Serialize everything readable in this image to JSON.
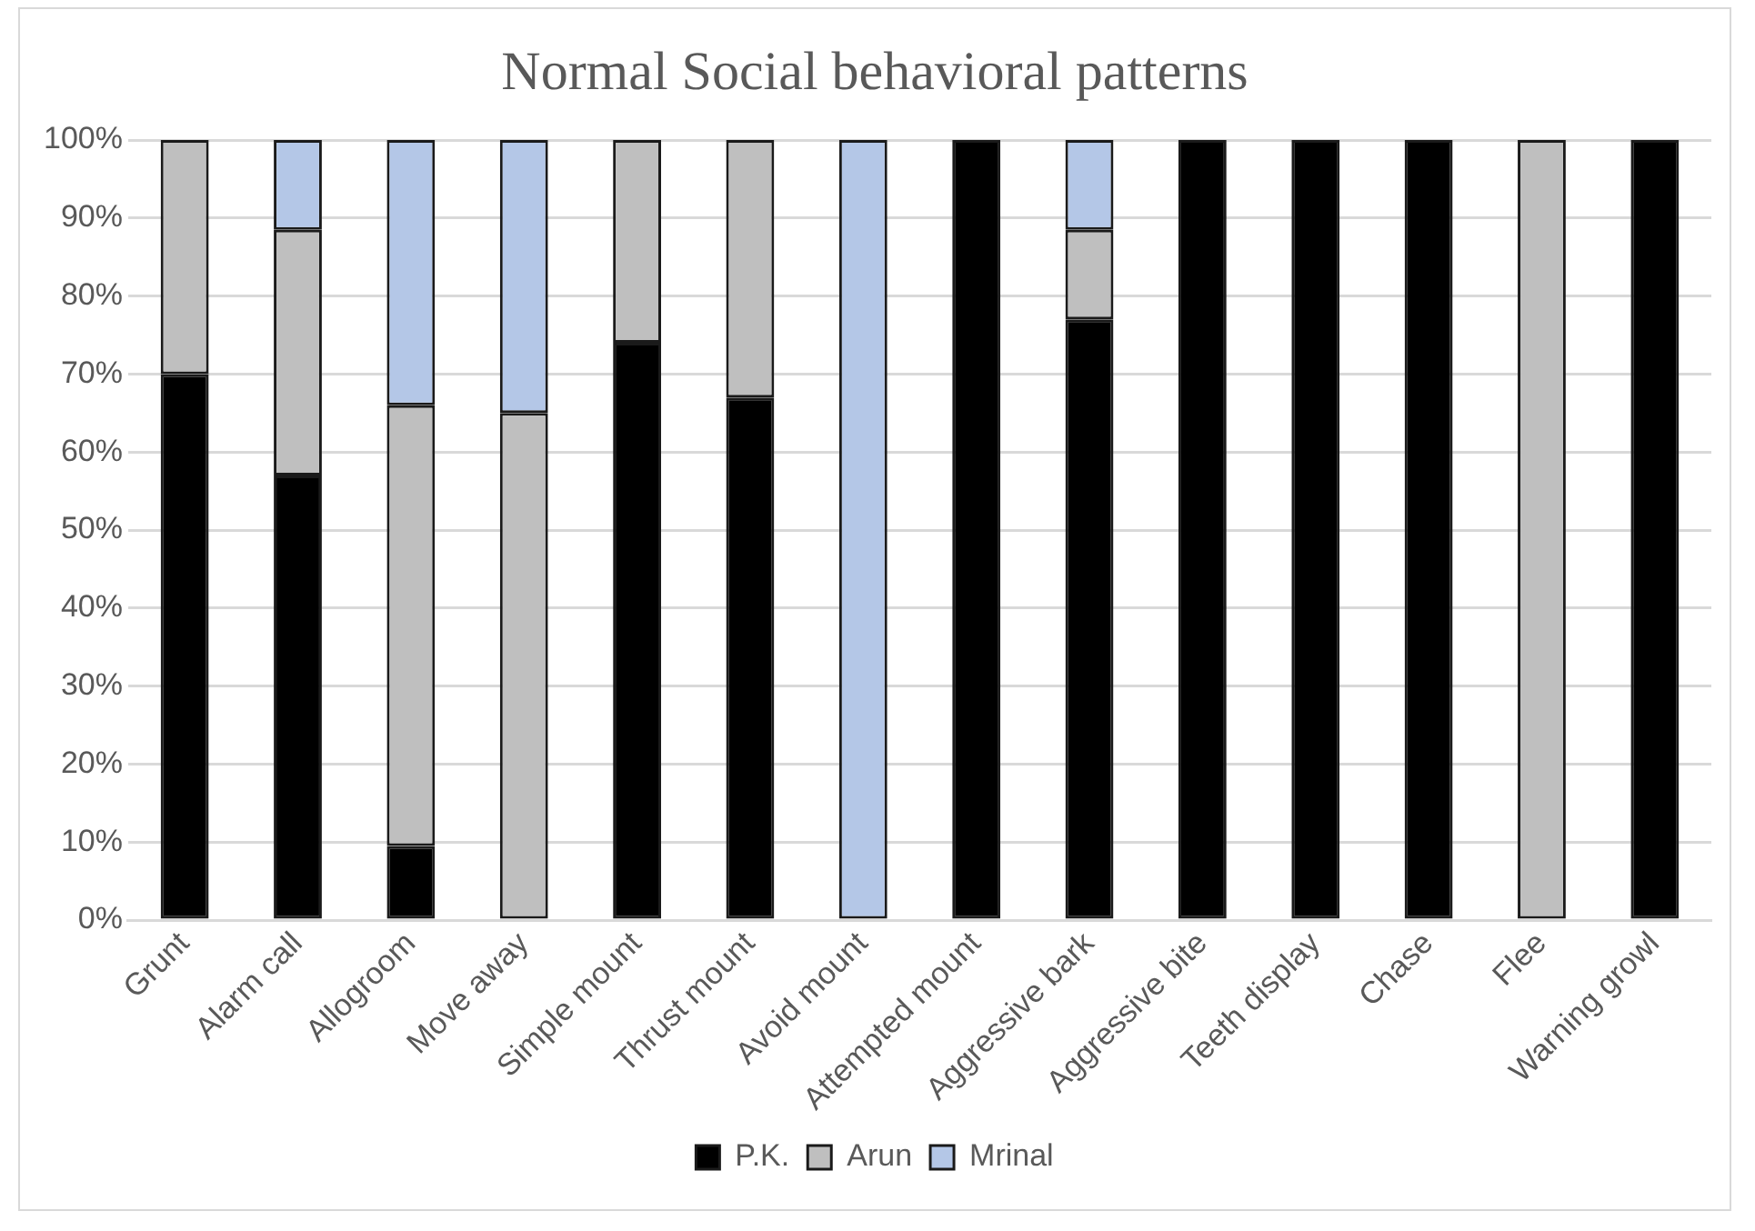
{
  "chart_data": {
    "type": "bar",
    "stacked": true,
    "title": "Normal Social behavioral patterns",
    "categories": [
      "Grunt",
      "Alarm call",
      "Allogroom",
      "Move away",
      "Simple mount",
      "Thrust mount",
      "Avoid mount",
      "Attempted mount",
      "Aggressive bark",
      "Aggressive bite",
      "Teeth display",
      "Chase",
      "Flee",
      "Warning growl"
    ],
    "series": [
      {
        "name": "P.K.",
        "color": "#000000",
        "values": [
          70,
          57,
          9.5,
          0,
          74,
          67,
          0,
          100,
          77,
          100,
          100,
          100,
          0,
          100
        ]
      },
      {
        "name": "Arun",
        "color": "#bfbfbf",
        "values": [
          30,
          31.5,
          56.5,
          65,
          26,
          33,
          0,
          0,
          11.5,
          0,
          0,
          0,
          100,
          0
        ]
      },
      {
        "name": "Mrinal",
        "color": "#b4c7e7",
        "values": [
          0,
          11.5,
          34,
          35,
          0,
          0,
          100,
          0,
          11.5,
          0,
          0,
          0,
          0,
          0
        ]
      }
    ],
    "ylim": [
      0,
      100
    ],
    "yticks": [
      {
        "value": 0,
        "label": "0%"
      },
      {
        "value": 10,
        "label": "10%"
      },
      {
        "value": 20,
        "label": "20%"
      },
      {
        "value": 30,
        "label": "30%"
      },
      {
        "value": 40,
        "label": "40%"
      },
      {
        "value": 50,
        "label": "50%"
      },
      {
        "value": 60,
        "label": "60%"
      },
      {
        "value": 70,
        "label": "70%"
      },
      {
        "value": 80,
        "label": "80%"
      },
      {
        "value": 90,
        "label": "90%"
      },
      {
        "value": 100,
        "label": "100%"
      }
    ],
    "grid": "y",
    "legend": "bottom"
  }
}
